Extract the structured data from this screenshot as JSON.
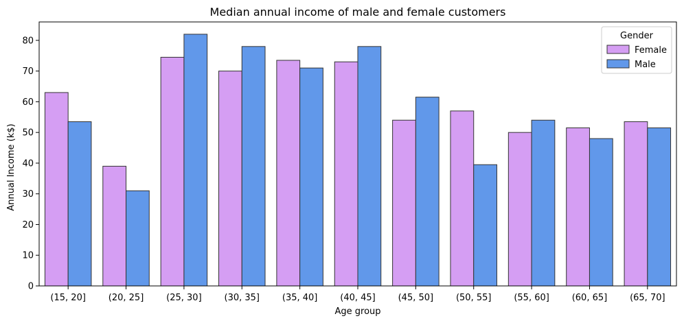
{
  "chart_data": {
    "type": "bar",
    "title": "Median annual income of male and female customers",
    "xlabel": "Age group",
    "ylabel": "Annual Income (k$)",
    "ylim": [
      0,
      86
    ],
    "yticks": [
      0,
      10,
      20,
      30,
      40,
      50,
      60,
      70,
      80
    ],
    "categories": [
      "(15, 20]",
      "(20, 25]",
      "(25, 30]",
      "(30, 35]",
      "(35, 40]",
      "(40, 45]",
      "(45, 50]",
      "(50, 55]",
      "(55, 60]",
      "(60, 65]",
      "(65, 70]"
    ],
    "series": [
      {
        "name": "Female",
        "color": "#d59ef3",
        "values": [
          63,
          39,
          74.5,
          70,
          73.5,
          73,
          54,
          57,
          50,
          51.5,
          53.5
        ]
      },
      {
        "name": "Male",
        "color": "#6198ea",
        "values": [
          53.5,
          31,
          82,
          78,
          71,
          78,
          61.5,
          39.5,
          54,
          48,
          51.5
        ]
      }
    ],
    "legend": {
      "title": "Gender",
      "placement": "top-right"
    },
    "grid": false
  }
}
